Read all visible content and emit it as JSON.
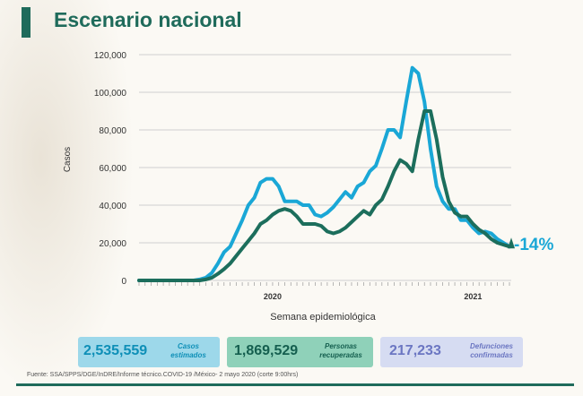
{
  "header": {
    "title": "Escenario nacional"
  },
  "chart_data": {
    "type": "line",
    "ylabel": "Casos",
    "xlabel": "Semana epidemiológica",
    "ylim": [
      0,
      120000
    ],
    "yticks": [
      0,
      20000,
      40000,
      60000,
      80000,
      100000,
      120000
    ],
    "ytick_labels": [
      "0",
      "20,000",
      "40,000",
      "60,000",
      "80,000",
      "100,000",
      "120,000"
    ],
    "year_labels": [
      {
        "label": "2020",
        "week_index": 22
      },
      {
        "label": "2021",
        "week_index": 55
      }
    ],
    "weeks": 62,
    "grid": true,
    "series": [
      {
        "color": "#1aa7d6",
        "values": [
          0,
          0,
          0,
          0,
          0,
          0,
          0,
          0,
          0,
          0,
          500,
          1500,
          4000,
          9000,
          15000,
          18000,
          25000,
          32000,
          40000,
          44000,
          52000,
          54000,
          54000,
          50000,
          42000,
          42000,
          42000,
          40000,
          40000,
          35000,
          34000,
          36000,
          39000,
          43000,
          47000,
          44000,
          50000,
          52000,
          58000,
          61000,
          70000,
          80000,
          80000,
          76000,
          95000,
          113000,
          110000,
          95000,
          70000,
          50000,
          42000,
          38000,
          38000,
          32000,
          32000,
          28000,
          25000,
          26000,
          25000,
          22000,
          20000,
          18000
        ]
      },
      {
        "color": "#1c6e5c",
        "values": [
          0,
          0,
          0,
          0,
          0,
          0,
          0,
          0,
          0,
          0,
          0,
          500,
          1500,
          3500,
          6000,
          9000,
          13000,
          17000,
          21000,
          25000,
          30000,
          32000,
          35000,
          37000,
          38000,
          37000,
          34000,
          30000,
          30000,
          30000,
          29000,
          26000,
          25000,
          26000,
          28000,
          31000,
          34000,
          37000,
          35000,
          40000,
          43000,
          50000,
          58000,
          64000,
          62000,
          58000,
          75000,
          90000,
          90000,
          75000,
          55000,
          42000,
          36000,
          34000,
          34000,
          30000,
          27000,
          25000,
          22000,
          20000,
          19000,
          18000
        ]
      }
    ],
    "annotation": "-14%"
  },
  "cards": [
    {
      "value": "2,535,559",
      "label": "Casos estimados"
    },
    {
      "value": "1,869,529",
      "label": "Personas recuperadas"
    },
    {
      "value": "217,233",
      "label": "Defunciones confirmadas"
    }
  ],
  "footer": {
    "source": "Fuente: SSA/SPPS/DGE/InDRE/Informe técnico.COVID-19 /México- 2 mayo 2020 (corte 9:00hrs)"
  }
}
